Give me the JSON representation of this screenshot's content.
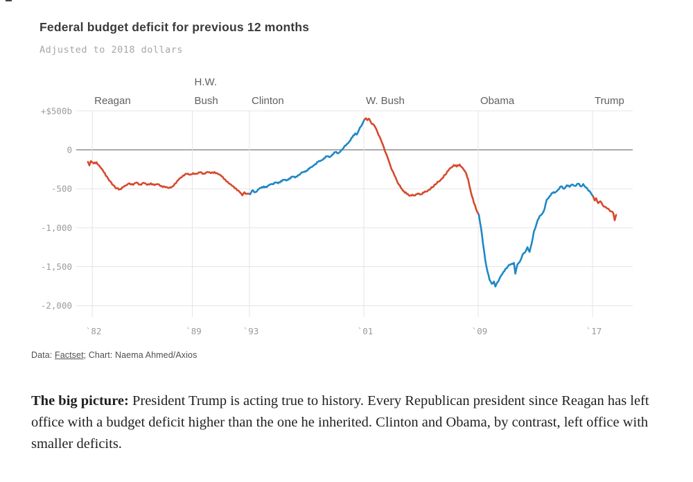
{
  "header": {
    "title": "Federal budget deficit for previous 12 months",
    "subtitle": "Adjusted to 2018 dollars"
  },
  "source": {
    "prefix": "Data: ",
    "link_label": "Factset",
    "suffix": "; Chart: Naema Ahmed/Axios"
  },
  "body": {
    "lead": "The big picture:",
    "text": " President Trump is acting true to history. Every Republican president since Reagan has left office with a budget deficit higher than the one he inherited. Clinton and Obama, by contrast, left office with smaller deficits."
  },
  "colors": {
    "republican": "#d6492c",
    "democrat": "#1e87c6",
    "gridline": "#e4e4e4",
    "zero_line": "#aaaaaa",
    "axis_text": "#9b9b9b",
    "president_text": "#5f5f5f"
  },
  "chart_data": {
    "type": "line",
    "title": "Federal budget deficit for previous 12 months",
    "subtitle": "Adjusted to 2018 dollars",
    "unit": "$ billions (2018 dollars), trailing 12 months",
    "ylim": [
      -2000,
      500
    ],
    "xlim": [
      1981.7,
      2018.8
    ],
    "grid": true,
    "color_encoding": {
      "red": "Republican presidency",
      "blue": "Democratic presidency"
    },
    "yticks": [
      {
        "value": 500,
        "label": "+$500b"
      },
      {
        "value": 0,
        "label": "0"
      },
      {
        "value": -500,
        "label": "-500"
      },
      {
        "value": -1000,
        "label": "-1,000"
      },
      {
        "value": -1500,
        "label": "-1,500"
      },
      {
        "value": -2000,
        "label": "-2,000"
      }
    ],
    "xticks": [
      {
        "year": 1982,
        "label": "`82"
      },
      {
        "year": 1989,
        "label": "`89"
      },
      {
        "year": 1993,
        "label": "`93"
      },
      {
        "year": 2001,
        "label": "`01"
      },
      {
        "year": 2009,
        "label": "`09"
      },
      {
        "year": 2017,
        "label": "`17"
      }
    ],
    "presidents": [
      {
        "name": "Reagan",
        "party": "republican",
        "start_year": 1982,
        "label_lines": [
          "Reagan"
        ]
      },
      {
        "name": "H.W. Bush",
        "party": "republican",
        "start_year": 1989,
        "label_lines": [
          "H.W.",
          "Bush"
        ]
      },
      {
        "name": "Clinton",
        "party": "democrat",
        "start_year": 1993,
        "label_lines": [
          "Clinton"
        ]
      },
      {
        "name": "W. Bush",
        "party": "republican",
        "start_year": 2001,
        "label_lines": [
          "W. Bush"
        ]
      },
      {
        "name": "Obama",
        "party": "democrat",
        "start_year": 2009,
        "label_lines": [
          "Obama"
        ]
      },
      {
        "name": "Trump",
        "party": "republican",
        "start_year": 2017,
        "label_lines": [
          "Trump"
        ]
      }
    ],
    "series": [
      {
        "name": "Reagan",
        "party": "republican",
        "points": [
          [
            1981.7,
            -155
          ],
          [
            1981.8,
            -200
          ],
          [
            1981.9,
            -145
          ],
          [
            1982.1,
            -175
          ],
          [
            1982.3,
            -160
          ],
          [
            1982.55,
            -220
          ],
          [
            1982.8,
            -285
          ],
          [
            1983.1,
            -365
          ],
          [
            1983.4,
            -445
          ],
          [
            1983.7,
            -495
          ],
          [
            1983.95,
            -505
          ],
          [
            1984.15,
            -480
          ],
          [
            1984.4,
            -455
          ],
          [
            1984.6,
            -430
          ],
          [
            1984.85,
            -450
          ],
          [
            1985.1,
            -420
          ],
          [
            1985.35,
            -445
          ],
          [
            1985.6,
            -425
          ],
          [
            1985.85,
            -450
          ],
          [
            1986.1,
            -430
          ],
          [
            1986.35,
            -455
          ],
          [
            1986.6,
            -440
          ],
          [
            1986.85,
            -465
          ],
          [
            1987.1,
            -480
          ],
          [
            1987.35,
            -490
          ],
          [
            1987.6,
            -470
          ],
          [
            1987.85,
            -430
          ],
          [
            1988.1,
            -370
          ],
          [
            1988.35,
            -330
          ],
          [
            1988.6,
            -310
          ],
          [
            1988.85,
            -320
          ],
          [
            1989.05,
            -300
          ]
        ]
      },
      {
        "name": "H.W. Bush",
        "party": "republican",
        "points": [
          [
            1989.05,
            -300
          ],
          [
            1989.3,
            -310
          ],
          [
            1989.55,
            -290
          ],
          [
            1989.8,
            -305
          ],
          [
            1990.05,
            -285
          ],
          [
            1990.3,
            -300
          ],
          [
            1990.55,
            -285
          ],
          [
            1990.8,
            -310
          ],
          [
            1991.05,
            -340
          ],
          [
            1991.3,
            -380
          ],
          [
            1991.55,
            -430
          ],
          [
            1991.8,
            -465
          ],
          [
            1992.05,
            -495
          ],
          [
            1992.3,
            -540
          ],
          [
            1992.5,
            -585
          ],
          [
            1992.65,
            -545
          ],
          [
            1992.8,
            -565
          ],
          [
            1993.05,
            -570
          ]
        ]
      },
      {
        "name": "Clinton",
        "party": "democrat",
        "points": [
          [
            1993.05,
            -570
          ],
          [
            1993.2,
            -520
          ],
          [
            1993.4,
            -545
          ],
          [
            1993.6,
            -510
          ],
          [
            1993.8,
            -490
          ],
          [
            1994.0,
            -470
          ],
          [
            1994.2,
            -480
          ],
          [
            1994.4,
            -450
          ],
          [
            1994.6,
            -440
          ],
          [
            1994.8,
            -420
          ],
          [
            1995.0,
            -430
          ],
          [
            1995.2,
            -400
          ],
          [
            1995.4,
            -385
          ],
          [
            1995.6,
            -395
          ],
          [
            1995.8,
            -365
          ],
          [
            1996.0,
            -345
          ],
          [
            1996.2,
            -355
          ],
          [
            1996.4,
            -325
          ],
          [
            1996.6,
            -300
          ],
          [
            1996.8,
            -285
          ],
          [
            1997.0,
            -265
          ],
          [
            1997.2,
            -240
          ],
          [
            1997.4,
            -215
          ],
          [
            1997.6,
            -185
          ],
          [
            1997.8,
            -155
          ],
          [
            1998.0,
            -140
          ],
          [
            1998.2,
            -110
          ],
          [
            1998.4,
            -85
          ],
          [
            1998.6,
            -95
          ],
          [
            1998.8,
            -60
          ],
          [
            1999.0,
            -30
          ],
          [
            1999.2,
            -45
          ],
          [
            1999.4,
            -10
          ],
          [
            1999.6,
            30
          ],
          [
            1999.8,
            70
          ],
          [
            2000.0,
            110
          ],
          [
            2000.2,
            160
          ],
          [
            2000.4,
            210
          ],
          [
            2000.5,
            195
          ],
          [
            2000.65,
            250
          ],
          [
            2000.8,
            300
          ],
          [
            2000.95,
            355
          ],
          [
            2001.05,
            390
          ]
        ]
      },
      {
        "name": "W. Bush",
        "party": "republican",
        "points": [
          [
            2001.05,
            390
          ],
          [
            2001.15,
            405
          ],
          [
            2001.25,
            380
          ],
          [
            2001.35,
            400
          ],
          [
            2001.5,
            350
          ],
          [
            2001.65,
            330
          ],
          [
            2001.8,
            290
          ],
          [
            2001.95,
            230
          ],
          [
            2002.1,
            170
          ],
          [
            2002.25,
            100
          ],
          [
            2002.4,
            30
          ],
          [
            2002.55,
            -45
          ],
          [
            2002.7,
            -120
          ],
          [
            2002.85,
            -200
          ],
          [
            2003.0,
            -270
          ],
          [
            2003.15,
            -330
          ],
          [
            2003.3,
            -390
          ],
          [
            2003.45,
            -445
          ],
          [
            2003.6,
            -490
          ],
          [
            2003.8,
            -530
          ],
          [
            2004.0,
            -565
          ],
          [
            2004.2,
            -590
          ],
          [
            2004.4,
            -575
          ],
          [
            2004.6,
            -585
          ],
          [
            2004.8,
            -560
          ],
          [
            2005.0,
            -570
          ],
          [
            2005.2,
            -550
          ],
          [
            2005.5,
            -520
          ],
          [
            2005.8,
            -480
          ],
          [
            2006.1,
            -430
          ],
          [
            2006.4,
            -380
          ],
          [
            2006.7,
            -320
          ],
          [
            2006.9,
            -270
          ],
          [
            2007.1,
            -230
          ],
          [
            2007.3,
            -195
          ],
          [
            2007.5,
            -215
          ],
          [
            2007.7,
            -190
          ],
          [
            2007.9,
            -230
          ],
          [
            2008.1,
            -280
          ],
          [
            2008.3,
            -380
          ],
          [
            2008.5,
            -550
          ],
          [
            2008.7,
            -680
          ],
          [
            2008.85,
            -760
          ],
          [
            2009.05,
            -835
          ]
        ]
      },
      {
        "name": "Obama",
        "party": "democrat",
        "points": [
          [
            2009.05,
            -835
          ],
          [
            2009.2,
            -1000
          ],
          [
            2009.35,
            -1220
          ],
          [
            2009.5,
            -1420
          ],
          [
            2009.65,
            -1560
          ],
          [
            2009.8,
            -1670
          ],
          [
            2009.95,
            -1720
          ],
          [
            2010.1,
            -1690
          ],
          [
            2010.2,
            -1755
          ],
          [
            2010.35,
            -1700
          ],
          [
            2010.5,
            -1650
          ],
          [
            2010.7,
            -1590
          ],
          [
            2010.9,
            -1530
          ],
          [
            2011.1,
            -1490
          ],
          [
            2011.3,
            -1470
          ],
          [
            2011.5,
            -1450
          ],
          [
            2011.6,
            -1590
          ],
          [
            2011.75,
            -1470
          ],
          [
            2011.9,
            -1440
          ],
          [
            2012.1,
            -1350
          ],
          [
            2012.3,
            -1310
          ],
          [
            2012.45,
            -1250
          ],
          [
            2012.6,
            -1310
          ],
          [
            2012.75,
            -1200
          ],
          [
            2012.9,
            -1050
          ],
          [
            2013.1,
            -940
          ],
          [
            2013.3,
            -850
          ],
          [
            2013.5,
            -815
          ],
          [
            2013.65,
            -755
          ],
          [
            2013.8,
            -640
          ],
          [
            2014.0,
            -595
          ],
          [
            2014.2,
            -555
          ],
          [
            2014.4,
            -545
          ],
          [
            2014.6,
            -510
          ],
          [
            2014.8,
            -470
          ],
          [
            2015.0,
            -500
          ],
          [
            2015.2,
            -455
          ],
          [
            2015.4,
            -475
          ],
          [
            2015.6,
            -445
          ],
          [
            2015.8,
            -465
          ],
          [
            2016.0,
            -435
          ],
          [
            2016.2,
            -470
          ],
          [
            2016.35,
            -440
          ],
          [
            2016.5,
            -480
          ],
          [
            2016.65,
            -505
          ],
          [
            2016.8,
            -530
          ],
          [
            2016.95,
            -575
          ],
          [
            2017.05,
            -600
          ]
        ]
      },
      {
        "name": "Trump",
        "party": "republican",
        "points": [
          [
            2017.05,
            -600
          ],
          [
            2017.15,
            -650
          ],
          [
            2017.25,
            -620
          ],
          [
            2017.4,
            -685
          ],
          [
            2017.55,
            -660
          ],
          [
            2017.7,
            -705
          ],
          [
            2017.85,
            -730
          ],
          [
            2018.0,
            -750
          ],
          [
            2018.15,
            -765
          ],
          [
            2018.3,
            -790
          ],
          [
            2018.45,
            -810
          ],
          [
            2018.55,
            -905
          ],
          [
            2018.65,
            -835
          ]
        ]
      }
    ]
  }
}
